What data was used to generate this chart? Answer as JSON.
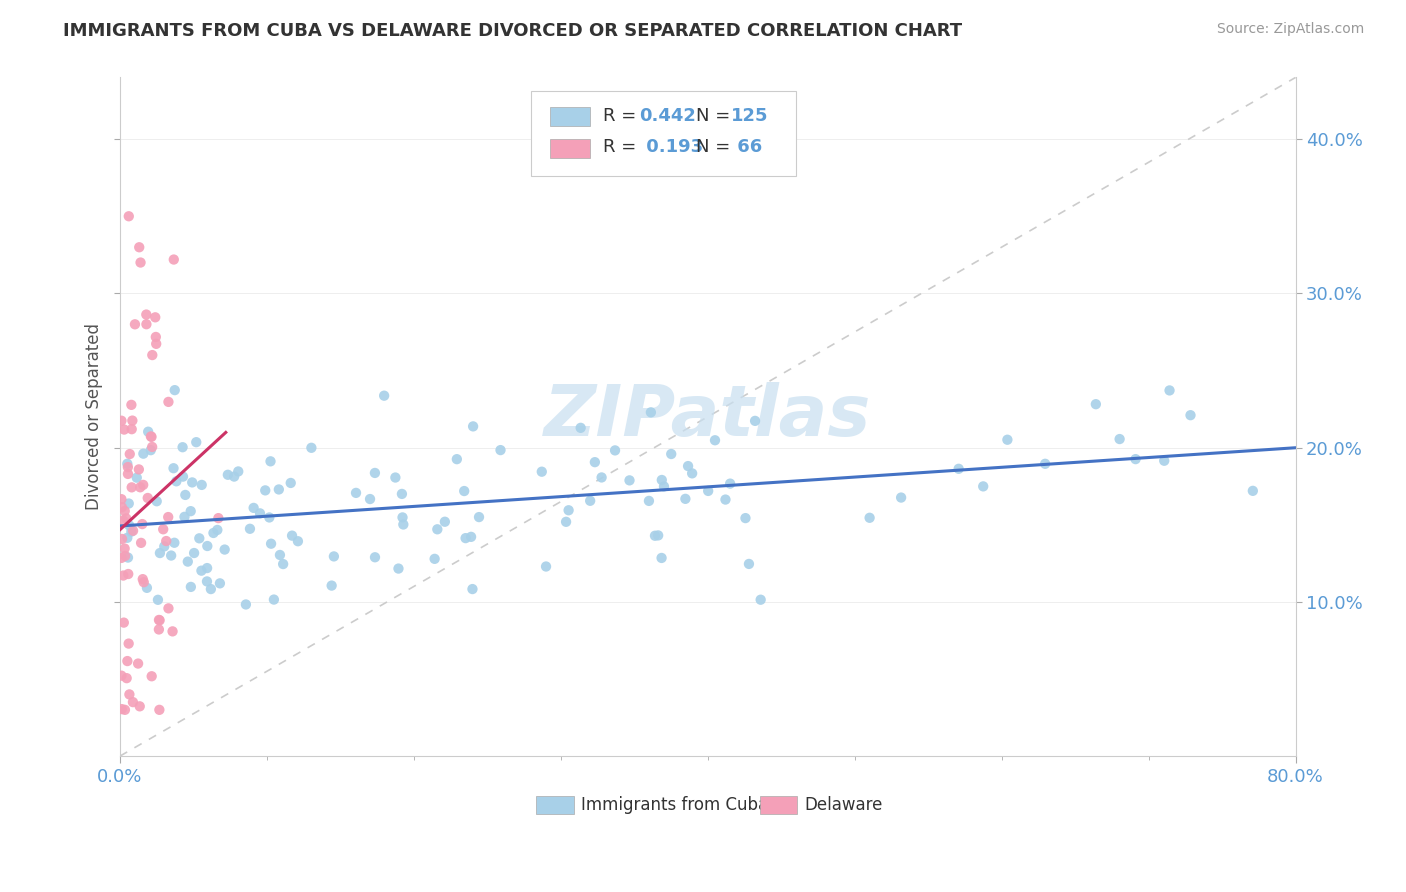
{
  "title": "IMMIGRANTS FROM CUBA VS DELAWARE DIVORCED OR SEPARATED CORRELATION CHART",
  "source": "Source: ZipAtlas.com",
  "ylabel": "Divorced or Separated",
  "ytick_labels": [
    "10.0%",
    "20.0%",
    "30.0%",
    "40.0%"
  ],
  "ytick_values": [
    0.1,
    0.2,
    0.3,
    0.4
  ],
  "xlim": [
    0.0,
    0.8
  ],
  "ylim": [
    0.0,
    0.44
  ],
  "blue_color": "#a8d0e8",
  "pink_color": "#f4a0b8",
  "trend_blue": "#4472c4",
  "trend_pink": "#cc3366",
  "diag_color": "#cccccc",
  "watermark_color": "#c8dff0",
  "background_color": "#ffffff",
  "blue_N": 125,
  "pink_N": 66,
  "blue_R": 0.442,
  "pink_R": 0.193
}
